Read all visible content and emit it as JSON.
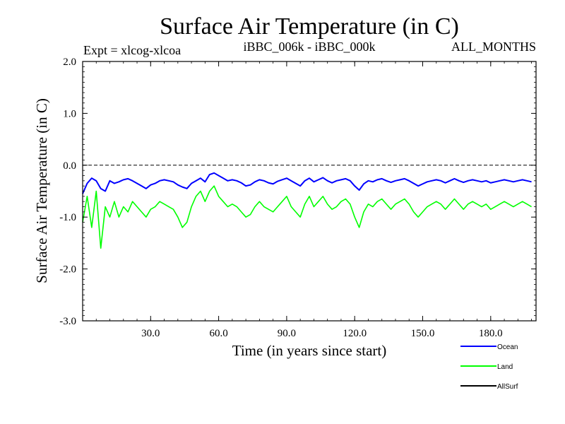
{
  "chart_data": {
    "type": "line",
    "title": "Surface Air Temperature (in C)",
    "subtitle_left": "Expt = xlcog-xlcoa",
    "subtitle_center": "iBBC_006k - iBBC_000k",
    "subtitle_right": "ALL_MONTHS",
    "xlabel": "Time (in years since start)",
    "ylabel": "Surface Air Temperature (in C)",
    "xlim": [
      0,
      200
    ],
    "ylim": [
      -3.0,
      2.0
    ],
    "x_ticks": [
      30,
      60,
      90,
      120,
      150,
      180
    ],
    "x_tick_labels": [
      "30.0",
      "60.0",
      "90.0",
      "120.0",
      "150.0",
      "180.0"
    ],
    "y_ticks": [
      2.0,
      1.0,
      0.0,
      -1.0,
      -2.0,
      -3.0
    ],
    "y_tick_labels": [
      "2.0",
      "1.0",
      "0.0",
      "-1.0",
      "-2.0",
      "-3.0"
    ],
    "reference_line_y": 0.0,
    "legend_position": "bottom-right",
    "series": [
      {
        "name": "Ocean",
        "color": "#0000ff",
        "x_step": 2,
        "values": [
          -0.55,
          -0.35,
          -0.25,
          -0.3,
          -0.45,
          -0.5,
          -0.3,
          -0.35,
          -0.32,
          -0.28,
          -0.26,
          -0.3,
          -0.35,
          -0.4,
          -0.45,
          -0.38,
          -0.35,
          -0.3,
          -0.28,
          -0.3,
          -0.32,
          -0.38,
          -0.42,
          -0.45,
          -0.35,
          -0.3,
          -0.25,
          -0.32,
          -0.18,
          -0.15,
          -0.2,
          -0.25,
          -0.3,
          -0.28,
          -0.3,
          -0.34,
          -0.4,
          -0.38,
          -0.32,
          -0.28,
          -0.3,
          -0.34,
          -0.36,
          -0.31,
          -0.28,
          -0.25,
          -0.3,
          -0.35,
          -0.4,
          -0.3,
          -0.25,
          -0.32,
          -0.28,
          -0.24,
          -0.3,
          -0.34,
          -0.3,
          -0.28,
          -0.26,
          -0.3,
          -0.4,
          -0.48,
          -0.36,
          -0.3,
          -0.32,
          -0.28,
          -0.26,
          -0.3,
          -0.33,
          -0.3,
          -0.28,
          -0.26,
          -0.3,
          -0.35,
          -0.4,
          -0.36,
          -0.32,
          -0.3,
          -0.28,
          -0.3,
          -0.34,
          -0.3,
          -0.26,
          -0.3,
          -0.33,
          -0.3,
          -0.28,
          -0.3,
          -0.32,
          -0.3,
          -0.34,
          -0.32,
          -0.3,
          -0.28,
          -0.3,
          -0.32,
          -0.3,
          -0.28,
          -0.3,
          -0.32
        ]
      },
      {
        "name": "Land",
        "color": "#00ff00",
        "x_step": 2,
        "values": [
          -1.1,
          -0.6,
          -1.2,
          -0.5,
          -1.6,
          -0.8,
          -1.0,
          -0.7,
          -1.0,
          -0.8,
          -0.9,
          -0.7,
          -0.8,
          -0.9,
          -1.0,
          -0.85,
          -0.8,
          -0.7,
          -0.75,
          -0.8,
          -0.85,
          -1.0,
          -1.2,
          -1.1,
          -0.8,
          -0.6,
          -0.5,
          -0.7,
          -0.5,
          -0.4,
          -0.6,
          -0.7,
          -0.8,
          -0.75,
          -0.8,
          -0.9,
          -1.0,
          -0.95,
          -0.8,
          -0.7,
          -0.8,
          -0.85,
          -0.9,
          -0.8,
          -0.7,
          -0.6,
          -0.8,
          -0.9,
          -1.0,
          -0.75,
          -0.6,
          -0.8,
          -0.7,
          -0.6,
          -0.75,
          -0.85,
          -0.8,
          -0.7,
          -0.65,
          -0.75,
          -1.0,
          -1.2,
          -0.9,
          -0.75,
          -0.8,
          -0.7,
          -0.65,
          -0.75,
          -0.85,
          -0.75,
          -0.7,
          -0.65,
          -0.75,
          -0.9,
          -1.0,
          -0.9,
          -0.8,
          -0.75,
          -0.7,
          -0.75,
          -0.85,
          -0.75,
          -0.65,
          -0.75,
          -0.85,
          -0.75,
          -0.7,
          -0.75,
          -0.8,
          -0.75,
          -0.85,
          -0.8,
          -0.75,
          -0.7,
          -0.75,
          -0.8,
          -0.75,
          -0.7,
          -0.75,
          -0.8
        ]
      },
      {
        "name": "AllSurf",
        "color": "#000000",
        "x_step": 2,
        "values": []
      }
    ]
  }
}
